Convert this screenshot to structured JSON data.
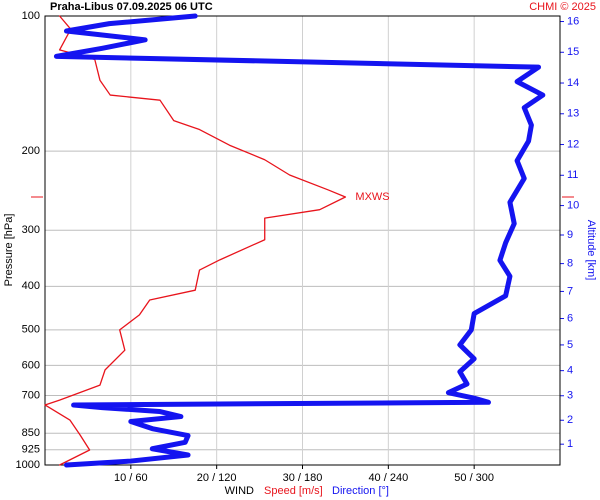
{
  "chart_data": {
    "type": "line",
    "title": "Praha-Libus    07.09.2025 06 UTC",
    "credit": "CHMI © 2025",
    "ylabel": "Pressure [hPa]",
    "y2label": "Altitude [km]",
    "xlabel": "WIND",
    "ylim": [
      1000,
      100
    ],
    "log_y": true,
    "yticks": [
      100,
      200,
      300,
      400,
      500,
      600,
      700,
      850,
      925,
      1000
    ],
    "xlim": [
      0,
      60
    ],
    "x2lim": [
      0,
      360
    ],
    "xticks": [
      {
        "value": 10,
        "label": "10 / 60"
      },
      {
        "value": 20,
        "label": "20 / 120"
      },
      {
        "value": 30,
        "label": "30 / 180"
      },
      {
        "value": 40,
        "label": "40 / 240"
      },
      {
        "value": 50,
        "label": "50 / 300"
      }
    ],
    "y2ticks": [
      1,
      2,
      3,
      4,
      5,
      6,
      7,
      8,
      9,
      10,
      11,
      12,
      13,
      14,
      15,
      16
    ],
    "grid": true,
    "series": [
      {
        "name": "Speed [m/s]",
        "color": "#e8141c",
        "axis": "x",
        "pressure": [
          100,
          107,
          119,
          125,
          139,
          150,
          154,
          171,
          179,
          194,
          209,
          226,
          244,
          253,
          270,
          282,
          315,
          349,
          368,
          408,
          429,
          463,
          500,
          555,
          614,
          664,
          717,
          735,
          794,
          858,
          926,
          1000
        ],
        "values": [
          1.7,
          3,
          1.7,
          5.8,
          6.4,
          7.6,
          13.4,
          15,
          18,
          21.5,
          25.6,
          28.5,
          33,
          35,
          32,
          25.6,
          25.6,
          20.4,
          18,
          17.5,
          12.2,
          11,
          8.7,
          9.3,
          7,
          6.4,
          1.7,
          0,
          2.9,
          4.1,
          5.2,
          1.7
        ]
      },
      {
        "name": "Direction [°]",
        "color": "#1414f0",
        "axis": "x2",
        "pressure": [
          100,
          104,
          108,
          113,
          118,
          123,
          130,
          140,
          150,
          160,
          175,
          190,
          210,
          230,
          260,
          290,
          320,
          350,
          380,
          420,
          460,
          500,
          540,
          580,
          620,
          660,
          690,
          710,
          725,
          735,
          745,
          760,
          780,
          800,
          830,
          860,
          890,
          920,
          950,
          980,
          1000
        ],
        "values": [
          105,
          45,
          15,
          70,
          40,
          8,
          345,
          330,
          348,
          335,
          340,
          338,
          330,
          335,
          325,
          328,
          322,
          318,
          325,
          322,
          300,
          298,
          290,
          300,
          290,
          295,
          282,
          300,
          310,
          20,
          40,
          80,
          95,
          60,
          75,
          100,
          98,
          75,
          100,
          60,
          15
        ]
      }
    ],
    "annotation": {
      "text": "MXWS",
      "pressure": 253
    }
  }
}
